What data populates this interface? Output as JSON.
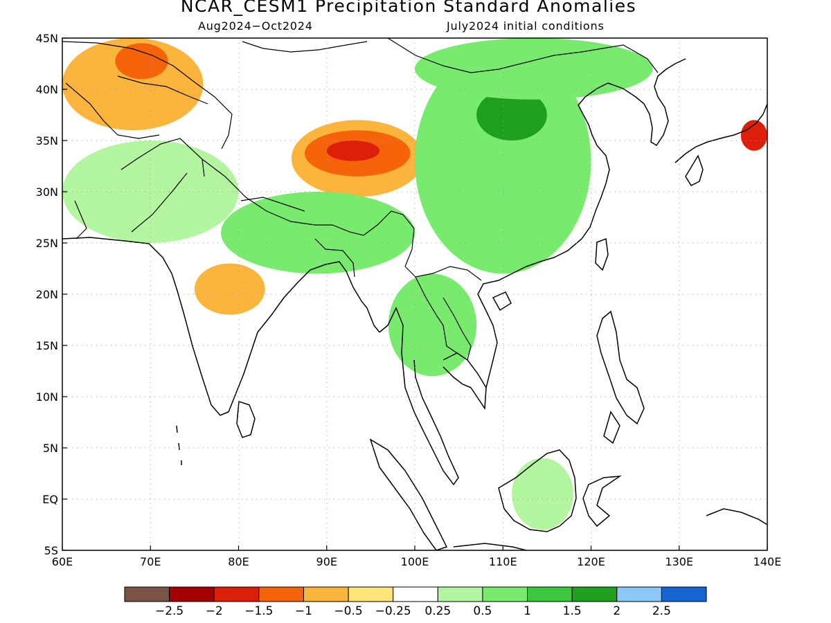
{
  "title": "NCAR_CESM1 Precipitation Standard Anomalies",
  "period": "Aug2024−Oct2024",
  "initial_conditions": "July2024 initial conditions",
  "map": {
    "lon_range": [
      60,
      140
    ],
    "lat_range": [
      -5,
      45
    ],
    "lon_ticks": [
      "60E",
      "70E",
      "80E",
      "90E",
      "100E",
      "110E",
      "120E",
      "130E",
      "140E"
    ],
    "lat_ticks": [
      "45N",
      "40N",
      "35N",
      "30N",
      "25N",
      "20N",
      "15N",
      "10N",
      "5N",
      "EQ",
      "5S"
    ],
    "grid": true
  },
  "colorbar": {
    "colors": [
      "#7a5246",
      "#a50000",
      "#dc1e0a",
      "#f5640a",
      "#fbb43c",
      "#ffe47a",
      "#ffffff",
      "#b4f5a0",
      "#78eb6e",
      "#3cc83c",
      "#1ea01e",
      "#8cc8f5",
      "#1464d2"
    ],
    "labels": [
      "−2.5",
      "−2",
      "−1.5",
      "−1",
      "−0.5",
      "−0.25",
      "0.25",
      "0.5",
      "1",
      "1.5",
      "2",
      "2.5"
    ]
  },
  "anomaly_regions": [
    {
      "name": "central-asia-dry",
      "level": -0.5,
      "lon": [
        60,
        76
      ],
      "lat": [
        36,
        45
      ]
    },
    {
      "name": "kazakh-dry-core",
      "level": -1,
      "lon": [
        66,
        72
      ],
      "lat": [
        41,
        44.5
      ]
    },
    {
      "name": "tibet-dry",
      "level": -0.5,
      "lon": [
        86,
        101
      ],
      "lat": [
        29.5,
        37
      ]
    },
    {
      "name": "tibet-dry-mid",
      "level": -1,
      "lon": [
        87.5,
        99.5
      ],
      "lat": [
        31.5,
        36
      ]
    },
    {
      "name": "tibet-dry-core",
      "level": -1.5,
      "lon": [
        90,
        96
      ],
      "lat": [
        33,
        35
      ]
    },
    {
      "name": "india-dry",
      "level": -0.5,
      "lon": [
        75,
        83
      ],
      "lat": [
        18,
        23
      ]
    },
    {
      "name": "japan-dry",
      "level": -1.5,
      "lon": [
        137,
        140
      ],
      "lat": [
        34,
        37
      ]
    },
    {
      "name": "china-wet",
      "level": 1,
      "lon": [
        100,
        120
      ],
      "lat": [
        22,
        44
      ]
    },
    {
      "name": "north-china-wet",
      "level": 2,
      "lon": [
        107,
        115
      ],
      "lat": [
        35,
        40
      ]
    },
    {
      "name": "himalaya-wet",
      "level": 1,
      "lon": [
        78,
        100
      ],
      "lat": [
        22,
        30
      ]
    },
    {
      "name": "indochina-wet",
      "level": 1,
      "lon": [
        97,
        107
      ],
      "lat": [
        12,
        22
      ]
    },
    {
      "name": "pakistan-wet",
      "level": 0.5,
      "lon": [
        60,
        80
      ],
      "lat": [
        25,
        35
      ]
    },
    {
      "name": "borneo-wet",
      "level": 0.5,
      "lon": [
        111,
        118
      ],
      "lat": [
        -3,
        4
      ]
    },
    {
      "name": "mongolia-wet",
      "level": 1,
      "lon": [
        100,
        127
      ],
      "lat": [
        39,
        45
      ]
    }
  ]
}
